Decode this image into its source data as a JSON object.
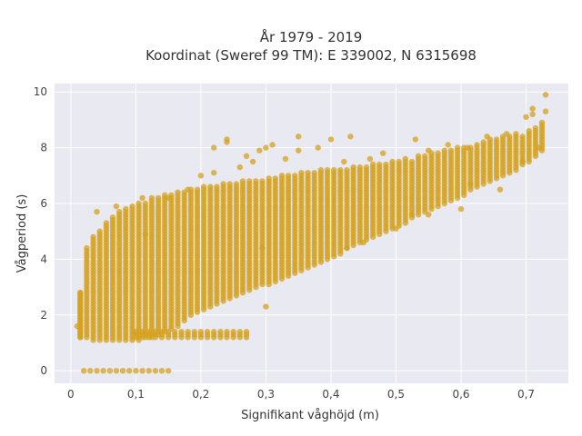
{
  "chart_data": {
    "type": "scatter",
    "title_lines": [
      "År 1979 - 2019",
      "Koordinat (Sweref 99 TM): E 339002, N 6315698"
    ],
    "xlabel": "Signifikant våghöjd (m)",
    "ylabel": "Vågperiod (s)",
    "xlim": [
      -0.025,
      0.765
    ],
    "ylim": [
      -0.45,
      10.3
    ],
    "x_ticks": [
      0,
      0.1,
      0.2,
      0.3,
      0.4,
      0.5,
      0.6,
      0.7
    ],
    "x_tick_labels": [
      "0",
      "0,1",
      "0,2",
      "0,3",
      "0,4",
      "0,5",
      "0,6",
      "0,7"
    ],
    "y_ticks": [
      0,
      2,
      4,
      6,
      8,
      10
    ],
    "y_tick_labels": [
      "0",
      "2",
      "4",
      "6",
      "8",
      "10"
    ],
    "grid": true,
    "marker_color": "#d4a21f",
    "plot_bg": "#e9e9f1",
    "bands": [
      {
        "x": [
          0.01,
          0.01,
          0.02,
          0.03,
          0.04,
          0.05,
          0.06,
          0.07,
          0.08,
          0.09,
          0.1,
          0.11,
          0.12,
          0.13,
          0.14,
          0.15,
          0.16,
          0.17,
          0.18,
          0.19,
          0.2,
          0.21,
          0.22,
          0.23,
          0.24,
          0.25,
          0.26,
          0.27,
          0.28,
          0.29,
          0.3,
          0.31,
          0.32,
          0.33,
          0.34,
          0.35,
          0.36,
          0.37,
          0.38,
          0.39,
          0.4,
          0.41,
          0.42,
          0.43,
          0.44,
          0.45,
          0.46,
          0.47,
          0.48,
          0.49,
          0.5,
          0.51,
          0.52,
          0.53,
          0.54,
          0.55,
          0.56,
          0.57,
          0.58,
          0.59,
          0.6,
          0.61,
          0.62,
          0.63,
          0.64,
          0.65,
          0.66,
          0.67,
          0.68,
          0.69,
          0.7,
          0.71,
          0.72
        ]
      },
      {
        "ymin": [
          1.2,
          1.2,
          1.2,
          1.1,
          1.1,
          1.1,
          1.1,
          1.1,
          1.1,
          1.1,
          1.1,
          1.15,
          1.2,
          1.3,
          1.4,
          1.5,
          1.6,
          1.8,
          2.0,
          2.1,
          2.2,
          2.3,
          2.4,
          2.5,
          2.6,
          2.7,
          2.8,
          2.9,
          3.0,
          3.05,
          3.1,
          3.2,
          3.3,
          3.4,
          3.5,
          3.6,
          3.7,
          3.8,
          3.9,
          4.0,
          4.1,
          4.2,
          4.35,
          4.5,
          4.6,
          4.7,
          4.8,
          4.9,
          5.0,
          5.1,
          5.2,
          5.3,
          5.45,
          5.6,
          5.7,
          5.8,
          5.9,
          6.0,
          6.1,
          6.2,
          6.3,
          6.45,
          6.6,
          6.7,
          6.8,
          6.9,
          7.0,
          7.1,
          7.2,
          7.35,
          7.5,
          7.7,
          7.9
        ]
      },
      {
        "ymax": [
          2.8,
          2.8,
          4.4,
          4.8,
          5.0,
          5.3,
          5.5,
          5.7,
          5.8,
          5.9,
          6.0,
          6.1,
          6.2,
          6.2,
          6.3,
          6.3,
          6.4,
          6.4,
          6.5,
          6.5,
          6.6,
          6.6,
          6.6,
          6.7,
          6.7,
          6.7,
          6.8,
          6.8,
          6.8,
          6.9,
          6.9,
          6.9,
          7.0,
          7.0,
          7.0,
          7.1,
          7.1,
          7.1,
          7.2,
          7.2,
          7.2,
          7.2,
          7.3,
          7.3,
          7.3,
          7.3,
          7.4,
          7.4,
          7.4,
          7.5,
          7.5,
          7.6,
          7.6,
          7.7,
          7.7,
          7.8,
          7.8,
          7.9,
          7.9,
          8.0,
          8.0,
          8.1,
          8.1,
          8.2,
          8.3,
          8.3,
          8.4,
          8.4,
          8.5,
          8.5,
          8.6,
          8.7,
          8.9
        ]
      }
    ],
    "zero_row": {
      "x_start": 0.02,
      "x_end": 0.15,
      "x_step": 0.01,
      "y": 0
    },
    "low_row": {
      "x_start": 0.1,
      "x_end": 0.27,
      "x_step": 0.01,
      "y_values": [
        1.2,
        1.3,
        1.4
      ]
    },
    "outliers": [
      {
        "x": 0.01,
        "y": 1.6
      },
      {
        "x": 0.04,
        "y": 5.7
      },
      {
        "x": 0.07,
        "y": 5.9
      },
      {
        "x": 0.11,
        "y": 6.2
      },
      {
        "x": 0.15,
        "y": 6.2
      },
      {
        "x": 0.18,
        "y": 6.5
      },
      {
        "x": 0.2,
        "y": 7.0
      },
      {
        "x": 0.22,
        "y": 7.1
      },
      {
        "x": 0.22,
        "y": 8.0
      },
      {
        "x": 0.24,
        "y": 8.2
      },
      {
        "x": 0.24,
        "y": 8.3
      },
      {
        "x": 0.26,
        "y": 7.3
      },
      {
        "x": 0.27,
        "y": 7.7
      },
      {
        "x": 0.28,
        "y": 7.5
      },
      {
        "x": 0.29,
        "y": 7.9
      },
      {
        "x": 0.3,
        "y": 8.0
      },
      {
        "x": 0.31,
        "y": 8.1
      },
      {
        "x": 0.3,
        "y": 2.3
      },
      {
        "x": 0.33,
        "y": 7.6
      },
      {
        "x": 0.35,
        "y": 7.9
      },
      {
        "x": 0.35,
        "y": 8.4
      },
      {
        "x": 0.38,
        "y": 8.0
      },
      {
        "x": 0.4,
        "y": 8.3
      },
      {
        "x": 0.43,
        "y": 8.4
      },
      {
        "x": 0.42,
        "y": 7.5
      },
      {
        "x": 0.46,
        "y": 7.6
      },
      {
        "x": 0.48,
        "y": 7.8
      },
      {
        "x": 0.53,
        "y": 8.3
      },
      {
        "x": 0.55,
        "y": 7.9
      },
      {
        "x": 0.58,
        "y": 8.1
      },
      {
        "x": 0.61,
        "y": 8.0
      },
      {
        "x": 0.64,
        "y": 8.4
      },
      {
        "x": 0.67,
        "y": 8.5
      },
      {
        "x": 0.7,
        "y": 9.1
      },
      {
        "x": 0.71,
        "y": 9.2
      },
      {
        "x": 0.71,
        "y": 9.4
      },
      {
        "x": 0.73,
        "y": 9.3
      },
      {
        "x": 0.73,
        "y": 9.9
      },
      {
        "x": 0.72,
        "y": 8.0
      },
      {
        "x": 0.66,
        "y": 6.5
      },
      {
        "x": 0.6,
        "y": 5.8
      },
      {
        "x": 0.55,
        "y": 5.6
      },
      {
        "x": 0.5,
        "y": 5.1
      },
      {
        "x": 0.45,
        "y": 4.6
      }
    ]
  }
}
